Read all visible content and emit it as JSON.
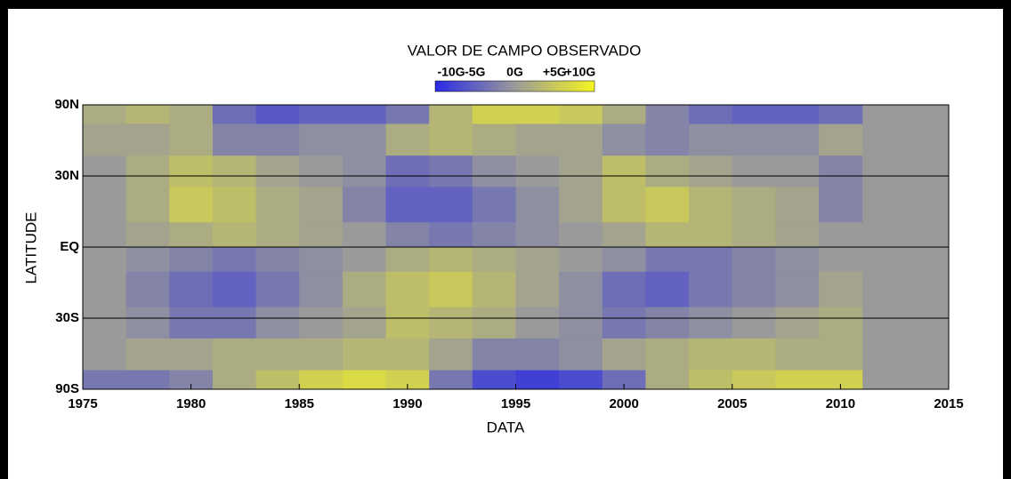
{
  "chart_data": {
    "type": "heatmap",
    "title": "VALOR DE CAMPO OBSERVADO",
    "x_label": "DATA",
    "y_label": "LATITUDE",
    "xlim": [
      1975,
      2015
    ],
    "xticks": [
      1975,
      1980,
      1985,
      1990,
      1995,
      2000,
      2005,
      2010,
      2015
    ],
    "ylim": [
      -90,
      90
    ],
    "yscale": "sine",
    "yticks": [
      {
        "value": 90,
        "label": "90N"
      },
      {
        "value": 30,
        "label": "30N"
      },
      {
        "value": 0,
        "label": "EQ"
      },
      {
        "value": -30,
        "label": "30S"
      },
      {
        "value": -90,
        "label": "90S"
      }
    ],
    "grid": true,
    "background": "#999999",
    "colormap": [
      "#2a2ae6",
      "#9a9a9a",
      "#f5f520"
    ],
    "colorbar_lim": [
      -10,
      10
    ],
    "colorbar_ticks": [
      {
        "value": -10,
        "label": "-10G"
      },
      {
        "value": -5,
        "label": "-5G"
      },
      {
        "value": 0,
        "label": "0G"
      },
      {
        "value": 5,
        "label": "+5G"
      },
      {
        "value": 10,
        "label": "+10G"
      }
    ],
    "xbins": [
      1975,
      1977,
      1979,
      1981,
      1983,
      1985,
      1987,
      1989,
      1991,
      1993,
      1995,
      1997,
      1999,
      2001,
      2003,
      2005,
      2007,
      2009,
      2011
    ],
    "ybins": [
      90,
      60,
      40,
      25,
      10,
      0,
      -10,
      -25,
      -40,
      -60,
      -90
    ],
    "z": [
      [
        2,
        3,
        2,
        -4,
        -6,
        -5,
        -5,
        -3,
        3,
        6,
        6,
        5,
        2,
        -2,
        -4,
        -5,
        -5,
        -4
      ],
      [
        1,
        1,
        2,
        -2,
        -2,
        -1,
        -1,
        2,
        3,
        2,
        1,
        1,
        -1,
        -2,
        -1,
        -1,
        -1,
        1
      ],
      [
        0,
        2,
        4,
        3,
        1,
        0,
        -1,
        -4,
        -3,
        -1,
        0,
        1,
        4,
        2,
        1,
        0,
        0,
        -2
      ],
      [
        0,
        2,
        5,
        4,
        2,
        1,
        -2,
        -5,
        -5,
        -3,
        -1,
        1,
        4,
        5,
        3,
        2,
        1,
        -2
      ],
      [
        0,
        1,
        2,
        3,
        2,
        1,
        0,
        -2,
        -3,
        -2,
        -1,
        0,
        1,
        3,
        3,
        2,
        1,
        0
      ],
      [
        0,
        -1,
        -2,
        -3,
        -2,
        -1,
        0,
        2,
        3,
        2,
        1,
        0,
        -1,
        -3,
        -3,
        -2,
        -1,
        0
      ],
      [
        0,
        -2,
        -4,
        -5,
        -3,
        -1,
        2,
        4,
        5,
        3,
        1,
        -1,
        -4,
        -5,
        -3,
        -2,
        -1,
        1
      ],
      [
        0,
        -1,
        -3,
        -3,
        -1,
        0,
        1,
        4,
        3,
        2,
        0,
        -1,
        -3,
        -2,
        -1,
        0,
        1,
        2
      ],
      [
        0,
        1,
        1,
        2,
        2,
        2,
        3,
        3,
        1,
        -2,
        -2,
        -1,
        1,
        2,
        3,
        3,
        2,
        2
      ],
      [
        -3,
        -3,
        -2,
        2,
        4,
        6,
        7,
        6,
        -3,
        -7,
        -8,
        -7,
        -4,
        2,
        4,
        5,
        6,
        6
      ]
    ]
  }
}
